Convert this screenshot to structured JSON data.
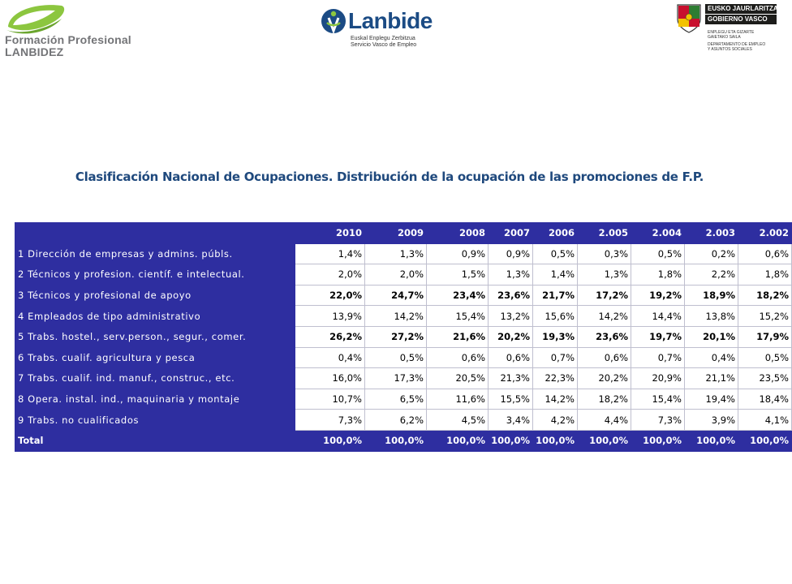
{
  "logos": {
    "fp": {
      "line1": "Formación Profesional",
      "line2": "LANBIDEZ"
    },
    "lanbide": {
      "name": "Lanbide",
      "sub1": "Euskal Enplegu Zerbitzua",
      "sub2": "Servicio Vasco de Empleo"
    },
    "gv": {
      "band1": "EUSKO JAURLARITZA",
      "band2": "GOBIERNO VASCO",
      "dept_eu1": "ENPLEGU ETA GIZARTE",
      "dept_eu2": "GAIETAKO SAILA",
      "dept_es1": "DEPARTAMENTO DE EMPLEO",
      "dept_es2": "Y ASUNTOS SOCIALES"
    }
  },
  "title": "Clasificación Nacional de Ocupaciones. Distribución de la ocupación de las promociones de F.P.",
  "colors": {
    "table_header": "#2e2ea0",
    "title": "#1f497d"
  },
  "table": {
    "columns": [
      "",
      "2010",
      "2009",
      "2008",
      "2007",
      "2006",
      "2.005",
      "2.004",
      "2.003",
      "2.002"
    ],
    "rows": [
      {
        "label": "1  Dirección de empresas y admins. públs.",
        "bold": false,
        "values": [
          "1,4%",
          "1,3%",
          "0,9%",
          "0,9%",
          "0,5%",
          "0,3%",
          "0,5%",
          "0,2%",
          "0,6%"
        ]
      },
      {
        "label": "2  Técnicos y profesion. científ. e intelectual.",
        "bold": false,
        "values": [
          "2,0%",
          "2,0%",
          "1,5%",
          "1,3%",
          "1,4%",
          "1,3%",
          "1,8%",
          "2,2%",
          "1,8%"
        ]
      },
      {
        "label": "3  Técnicos y profesional de apoyo",
        "bold": true,
        "values": [
          "22,0%",
          "24,7%",
          "23,4%",
          "23,6%",
          "21,7%",
          "17,2%",
          "19,2%",
          "18,9%",
          "18,2%"
        ]
      },
      {
        "label": "4  Empleados de tipo administrativo",
        "bold": false,
        "values": [
          "13,9%",
          "14,2%",
          "15,4%",
          "13,2%",
          "15,6%",
          "14,2%",
          "14,4%",
          "13,8%",
          "15,2%"
        ]
      },
      {
        "label": "5  Trabs. hostel., serv.person., segur., comer.",
        "bold": true,
        "values": [
          "26,2%",
          "27,2%",
          "21,6%",
          "20,2%",
          "19,3%",
          "23,6%",
          "19,7%",
          "20,1%",
          "17,9%"
        ]
      },
      {
        "label": "6  Trabs. cualif. agricultura y pesca",
        "bold": false,
        "values": [
          "0,4%",
          "0,5%",
          "0,6%",
          "0,6%",
          "0,7%",
          "0,6%",
          "0,7%",
          "0,4%",
          "0,5%"
        ]
      },
      {
        "label": "7  Trabs. cualif. ind. manuf., construc., etc.",
        "bold": false,
        "values": [
          "16,0%",
          "17,3%",
          "20,5%",
          "21,3%",
          "22,3%",
          "20,2%",
          "20,9%",
          "21,1%",
          "23,5%"
        ]
      },
      {
        "label": "8  Opera. instal. ind., maquinaria y montaje",
        "bold": false,
        "values": [
          "10,7%",
          "6,5%",
          "11,6%",
          "15,5%",
          "14,2%",
          "18,2%",
          "15,4%",
          "19,4%",
          "18,4%"
        ]
      },
      {
        "label": "9  Trabs. no cualificados",
        "bold": false,
        "values": [
          "7,3%",
          "6,2%",
          "4,5%",
          "3,4%",
          "4,2%",
          "4,4%",
          "7,3%",
          "3,9%",
          "4,1%"
        ]
      }
    ],
    "total": {
      "label": "Total",
      "values": [
        "100,0%",
        "100,0%",
        "100,0%",
        "100,0%",
        "100,0%",
        "100,0%",
        "100,0%",
        "100,0%",
        "100,0%"
      ]
    }
  }
}
